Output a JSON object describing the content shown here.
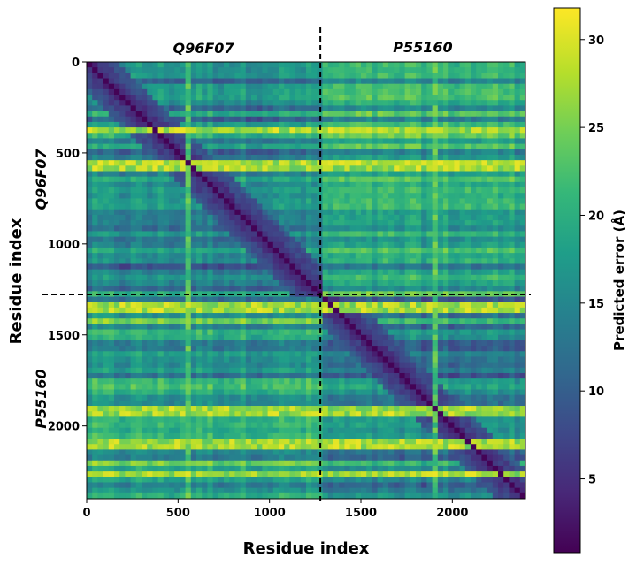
{
  "chart_data": {
    "type": "heatmap",
    "title": "",
    "xlabel": "Residue index",
    "ylabel": "Residue index",
    "xlim": [
      0,
      2400
    ],
    "ylim": [
      2400,
      0
    ],
    "x_ticks": [
      0,
      500,
      1000,
      1500,
      2000
    ],
    "y_ticks": [
      0,
      500,
      1000,
      1500,
      2000
    ],
    "chains": [
      {
        "name": "Q96F07",
        "start": 0,
        "end": 1278
      },
      {
        "name": "P55160",
        "start": 1278,
        "end": 2400
      }
    ],
    "chain_boundary": 1278,
    "colormap": "viridis",
    "colorbar": {
      "label": "Predicted error (Å)",
      "min": 0.8,
      "max": 31.8,
      "ticks": [
        5,
        10,
        15,
        20,
        25,
        30
      ]
    },
    "features": {
      "diagonal_error": 1.0,
      "high_error_rows": [
        370,
        545,
        560,
        575,
        1340,
        1370,
        1920,
        2100,
        2260
      ],
      "high_error_columns": [
        560,
        1910
      ],
      "typical_range": [
        3,
        24
      ]
    }
  },
  "colors": {
    "viridis": [
      "#440154",
      "#482878",
      "#3e4989",
      "#31688e",
      "#26828e",
      "#1f9e89",
      "#35b779",
      "#6ece58",
      "#b5de2b",
      "#fde725"
    ],
    "boundary_line": "#000000"
  }
}
